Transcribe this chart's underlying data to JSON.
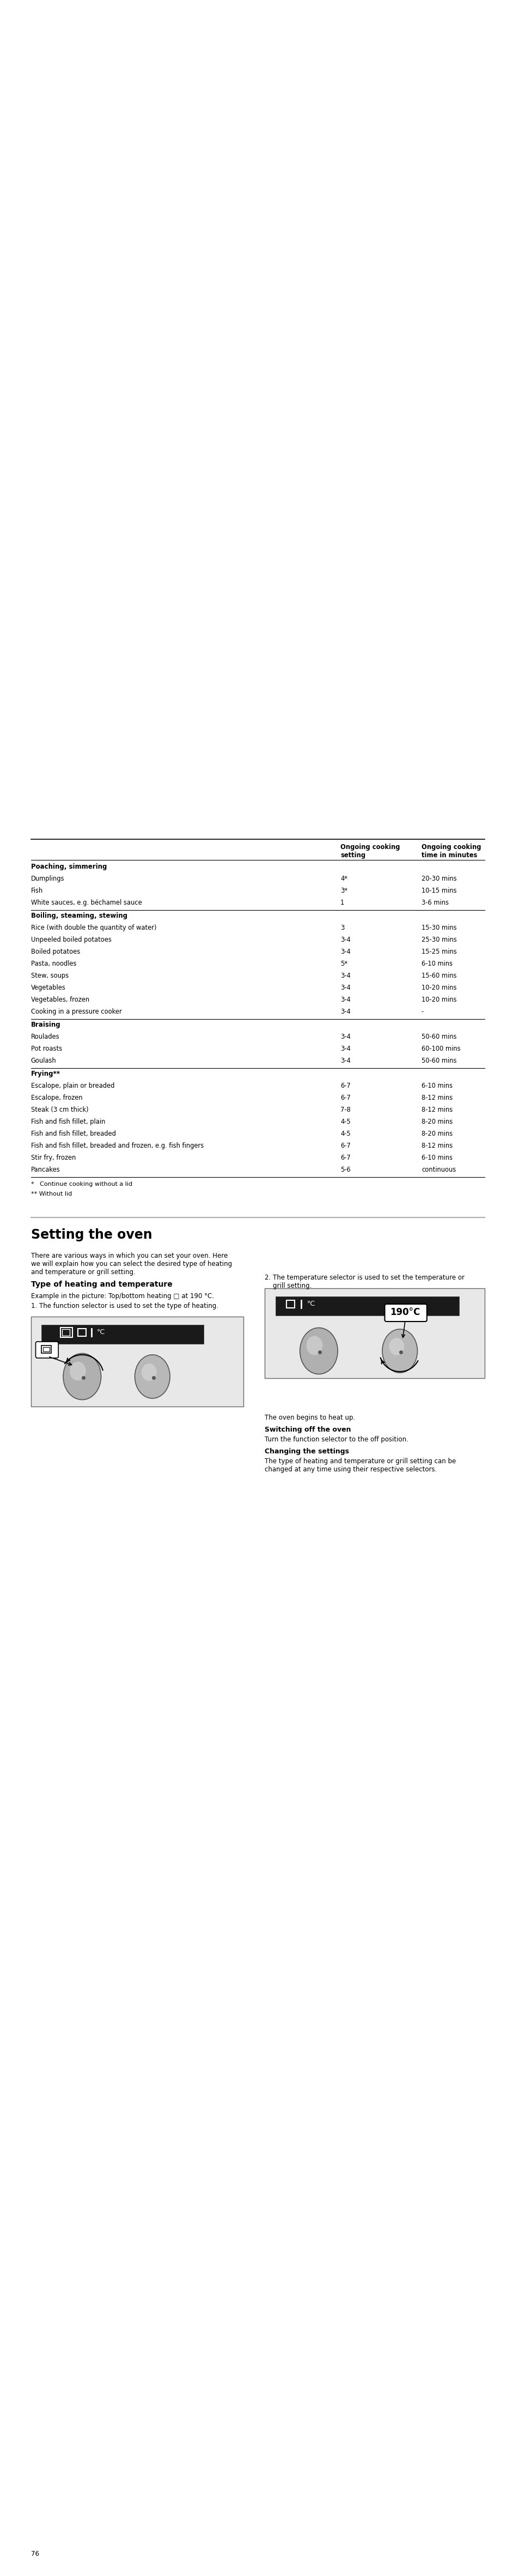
{
  "page_bg": "#ffffff",
  "table_header": [
    "",
    "Ongoing cooking\nsetting",
    "Ongoing cooking\ntime in minutes"
  ],
  "table_sections": [
    {
      "section_title": "Poaching, simmering",
      "rows": [
        [
          "Dumplings",
          "4*",
          "20-30 mins"
        ],
        [
          "Fish",
          "3*",
          "10-15 mins"
        ],
        [
          "White sauces, e.g. béchamel sauce",
          "1",
          "3-6 mins"
        ]
      ]
    },
    {
      "section_title": "Boiling, steaming, stewing",
      "rows": [
        [
          "Rice (with double the quantity of water)",
          "3",
          "15-30 mins"
        ],
        [
          "Unpeeled boiled potatoes",
          "3-4",
          "25-30 mins"
        ],
        [
          "Boiled potatoes",
          "3-4",
          "15-25 mins"
        ],
        [
          "Pasta, noodles",
          "5*",
          "6-10 mins"
        ],
        [
          "Stew, soups",
          "3-4",
          "15-60 mins"
        ],
        [
          "Vegetables",
          "3-4",
          "10-20 mins"
        ],
        [
          "Vegetables, frozen",
          "3-4",
          "10-20 mins"
        ],
        [
          "Cooking in a pressure cooker",
          "3-4",
          "-"
        ]
      ]
    },
    {
      "section_title": "Braising",
      "rows": [
        [
          "Roulades",
          "3-4",
          "50-60 mins"
        ],
        [
          "Pot roasts",
          "3-4",
          "60-100 mins"
        ],
        [
          "Goulash",
          "3-4",
          "50-60 mins"
        ]
      ]
    },
    {
      "section_title": "Frying**",
      "rows": [
        [
          "Escalope, plain or breaded",
          "6-7",
          "6-10 mins"
        ],
        [
          "Escalope, frozen",
          "6-7",
          "8-12 mins"
        ],
        [
          "Steak (3 cm thick)",
          "7-8",
          "8-12 mins"
        ],
        [
          "Fish and fish fillet, plain",
          "4-5",
          "8-20 mins"
        ],
        [
          "Fish and fish fillet, breaded",
          "4-5",
          "8-20 mins"
        ],
        [
          "Fish and fish fillet, breaded and frozen, e.g. fish fingers",
          "6-7",
          "8-12 mins"
        ],
        [
          "Stir fry, frozen",
          "6-7",
          "6-10 mins"
        ],
        [
          "Pancakes",
          "5-6",
          "continuous"
        ]
      ]
    }
  ],
  "footnotes": [
    "*   Continue cooking without a lid",
    "** Without lid"
  ],
  "section_title": "Setting the oven",
  "intro_text": "There are various ways in which you can set your oven. Here\nwe will explain how you can select the desired type of heating\nand temperature or grill setting.",
  "subsection_title": "Type of heating and temperature",
  "example_text": "Example in the picture: Top/bottom heating □ at 190 °C.",
  "step1_text": "1. The function selector is used to set the type of heating.",
  "step2_text": "2. The temperature selector is used to set the temperature or\n    grill setting.",
  "heat_text": "The oven begins to heat up.",
  "switch_off_title": "Switching off the oven",
  "switch_off_text": "Turn the function selector to the off position.",
  "change_title": "Changing the settings",
  "change_text": "The type of heating and temperature or grill setting can be\nchanged at any time using their respective selectors.",
  "page_number": "76"
}
